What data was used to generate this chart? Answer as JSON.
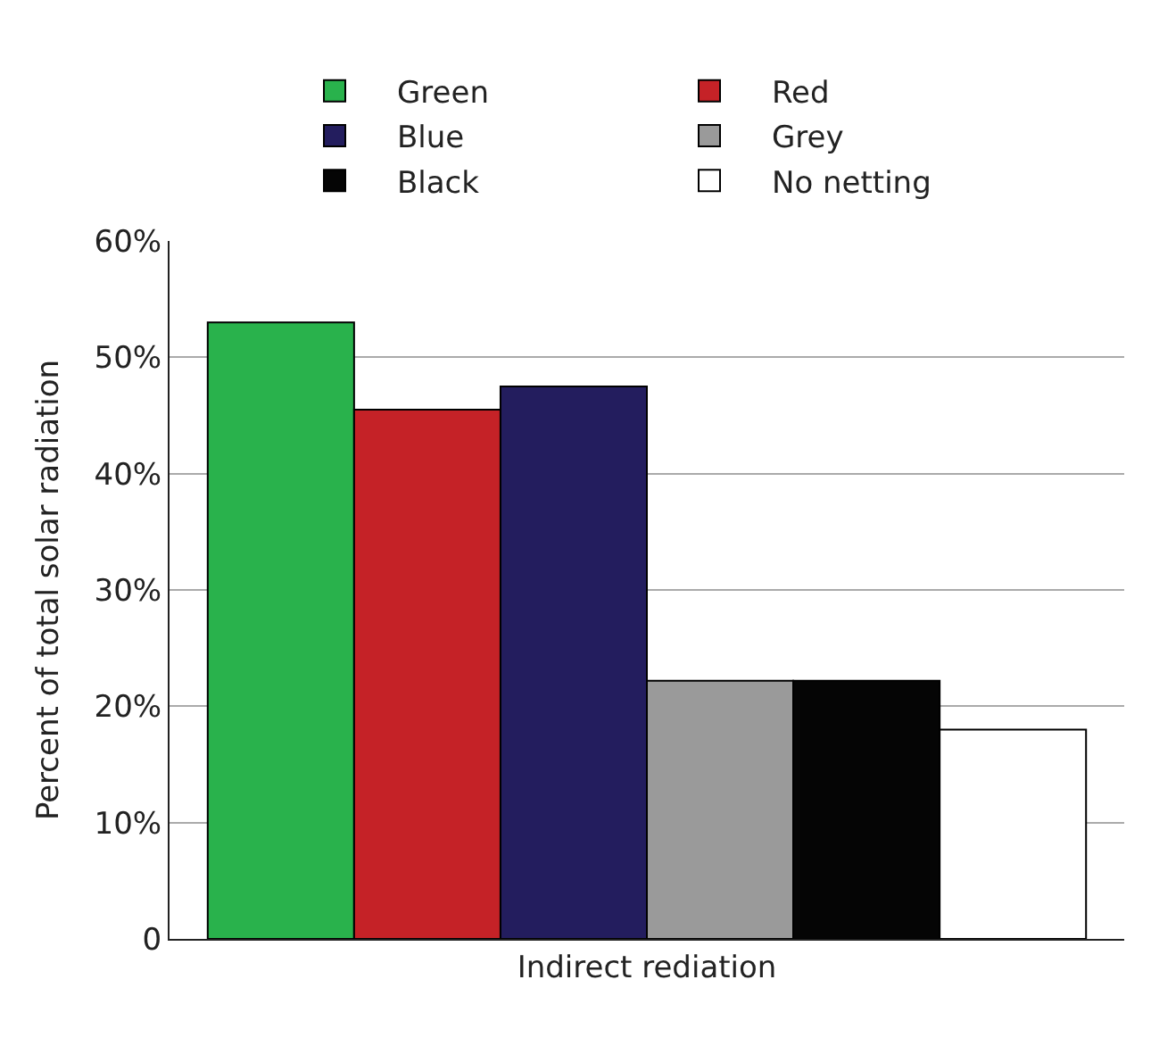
{
  "chart_data": {
    "type": "bar",
    "ylabel": "Percent of total solar radiation",
    "categories": [
      "Indirect rediation"
    ],
    "series": [
      {
        "name": "Green",
        "color": "#29b24c",
        "values": [
          53
        ]
      },
      {
        "name": "Red",
        "color": "#c52227",
        "values": [
          45.5
        ]
      },
      {
        "name": "Blue",
        "color": "#231d5e",
        "values": [
          47.5
        ]
      },
      {
        "name": "Grey",
        "color": "#9a9a9a",
        "values": [
          22.2
        ]
      },
      {
        "name": "Black",
        "color": "#050505",
        "values": [
          22.2
        ]
      },
      {
        "name": "No netting",
        "color": "#ffffff",
        "values": [
          18
        ]
      }
    ],
    "ylim": [
      0,
      60
    ],
    "yticks": [
      0,
      {
        "value": 10,
        "label": "10%"
      },
      {
        "value": 20,
        "label": "20%"
      },
      {
        "value": 30,
        "label": "30%"
      },
      {
        "value": 40,
        "label": "40%"
      },
      {
        "value": 50,
        "label": "50%"
      },
      {
        "value": 60,
        "label": "60%"
      }
    ],
    "grid": "y",
    "legend": "top"
  }
}
